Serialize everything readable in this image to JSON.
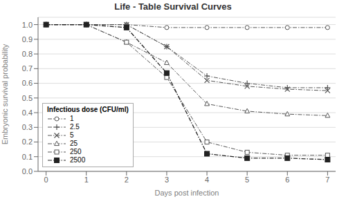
{
  "chart_data": {
    "type": "line",
    "title": "Life - Table Survival Curves",
    "x_label": "Days post infection",
    "y_label": "Embryonic survival probability",
    "xlim": [
      -0.2,
      7.2
    ],
    "ylim": [
      0.0,
      1.05
    ],
    "xticks": [
      0,
      1,
      2,
      3,
      4,
      5,
      6,
      7
    ],
    "yticks": [
      {
        "value": 0.0,
        "label": "0.0"
      },
      0.1,
      0.2,
      0.3,
      0.4,
      0.5,
      0.6,
      0.7,
      0.8,
      0.9,
      {
        "value": 1.0,
        "label": "1.0"
      }
    ],
    "grid": "y",
    "legend": "lower left",
    "legend_title": "Infectious dose (CFU/ml)",
    "series": [
      {
        "name": "1",
        "x": [
          0,
          1,
          2,
          3,
          4,
          5,
          6,
          7
        ],
        "values": [
          1.0,
          1.0,
          1.0,
          0.98,
          0.98,
          0.98,
          0.98,
          0.98
        ],
        "color": "#555555",
        "marker": "circle",
        "line_style": "dashdot"
      },
      {
        "name": "2.5",
        "x": [
          0,
          1,
          2,
          3,
          4,
          5,
          6,
          7
        ],
        "values": [
          1.0,
          1.0,
          1.0,
          0.85,
          0.65,
          0.6,
          0.57,
          0.57
        ],
        "color": "#555555",
        "marker": "plus",
        "line_style": "dashdot"
      },
      {
        "name": "5",
        "x": [
          0,
          1,
          2,
          3,
          4,
          5,
          6,
          7
        ],
        "values": [
          1.0,
          1.0,
          1.0,
          0.85,
          0.62,
          0.58,
          0.56,
          0.55
        ],
        "color": "#555555",
        "marker": "x",
        "line_style": "dashdot"
      },
      {
        "name": "25",
        "x": [
          0,
          1,
          2,
          3,
          4,
          5,
          6,
          7
        ],
        "values": [
          1.0,
          1.0,
          0.88,
          0.74,
          0.46,
          0.41,
          0.39,
          0.38
        ],
        "color": "#555555",
        "marker": "triangle",
        "line_style": "dashdot"
      },
      {
        "name": "250",
        "x": [
          0,
          1,
          2,
          3,
          4,
          5,
          6,
          7
        ],
        "values": [
          1.0,
          1.0,
          0.88,
          0.64,
          0.2,
          0.13,
          0.11,
          0.11
        ],
        "color": "#555555",
        "marker": "square",
        "line_style": "dashdot"
      },
      {
        "name": "2500",
        "x": [
          0,
          1,
          2,
          3,
          4,
          5,
          6,
          7
        ],
        "values": [
          1.0,
          1.0,
          0.98,
          0.67,
          0.12,
          0.09,
          0.09,
          0.08
        ],
        "color": "#222222",
        "marker": "filled_square",
        "line_style": "dashdot"
      }
    ]
  }
}
